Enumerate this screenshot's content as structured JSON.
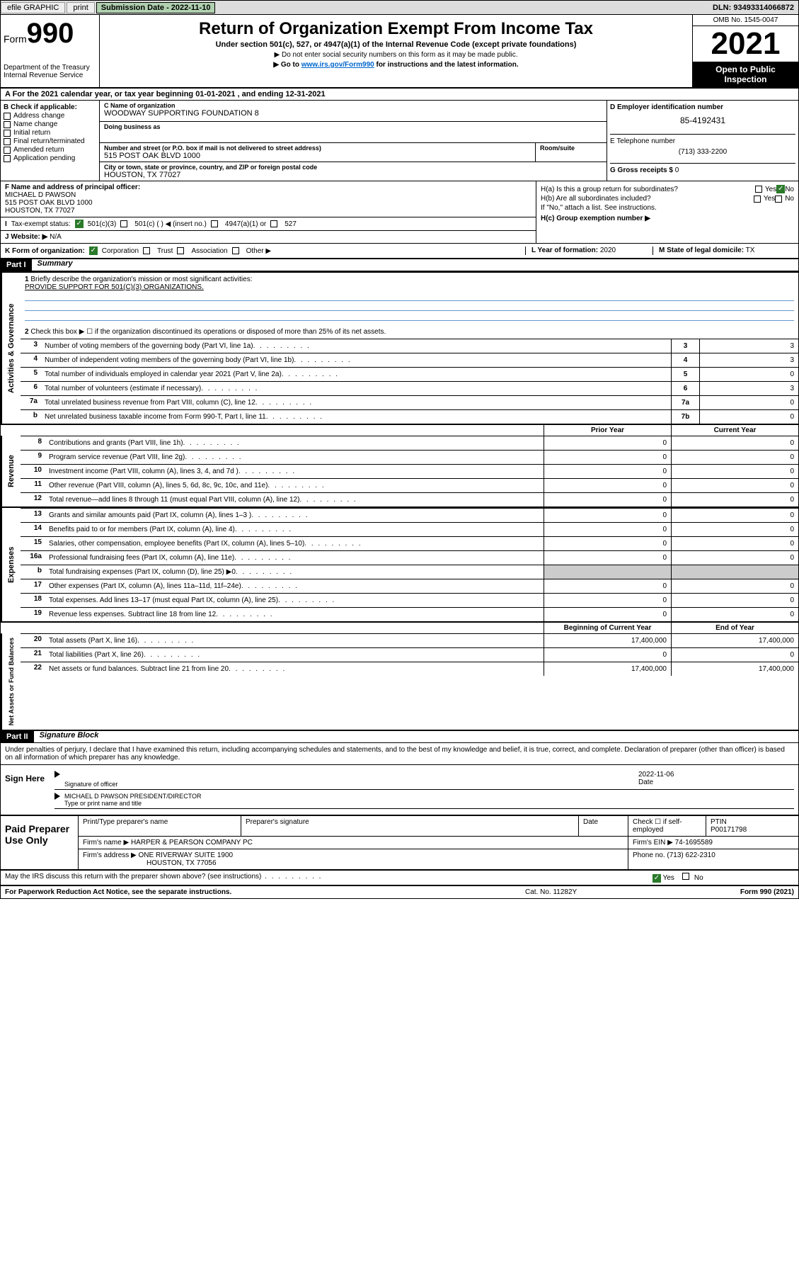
{
  "topbar": {
    "efile": "efile GRAPHIC",
    "print": "print",
    "submission_label": "Submission Date - 2022-11-10",
    "dln": "DLN: 93493314066872"
  },
  "header": {
    "form_label": "Form",
    "form_num": "990",
    "dept": "Department of the Treasury",
    "irs": "Internal Revenue Service",
    "title": "Return of Organization Exempt From Income Tax",
    "subtitle": "Under section 501(c), 527, or 4947(a)(1) of the Internal Revenue Code (except private foundations)",
    "note1": "▶ Do not enter social security numbers on this form as it may be made public.",
    "note2_pre": "▶ Go to ",
    "note2_link": "www.irs.gov/Form990",
    "note2_post": " for instructions and the latest information.",
    "omb": "OMB No. 1545-0047",
    "year": "2021",
    "inspect1": "Open to Public",
    "inspect2": "Inspection"
  },
  "row_a": "A For the 2021 calendar year, or tax year beginning 01-01-2021   , and ending 12-31-2021",
  "box_b": {
    "label": "B Check if applicable:",
    "items": [
      "Address change",
      "Name change",
      "Initial return",
      "Final return/terminated",
      "Amended return",
      "Application pending"
    ]
  },
  "box_c": {
    "name_label": "C Name of organization",
    "name": "WOODWAY SUPPORTING FOUNDATION 8",
    "dba_label": "Doing business as",
    "dba": "",
    "street_label": "Number and street (or P.O. box if mail is not delivered to street address)",
    "room_label": "Room/suite",
    "street": "515 POST OAK BLVD 1000",
    "city_label": "City or town, state or province, country, and ZIP or foreign postal code",
    "city": "HOUSTON, TX  77027"
  },
  "box_d": {
    "ein_label": "D Employer identification number",
    "ein": "85-4192431",
    "phone_label": "E Telephone number",
    "phone": "(713) 333-2200",
    "gross_label": "G Gross receipts $",
    "gross": "0"
  },
  "box_f": {
    "label": "F Name and address of principal officer:",
    "name": "MICHAEL D PAWSON",
    "street": "515 POST OAK BLVD 1000",
    "city": "HOUSTON, TX  77027"
  },
  "box_h": {
    "ha": "H(a)  Is this a group return for subordinates?",
    "hb": "H(b)  Are all subordinates included?",
    "hb_note": "If \"No,\" attach a list. See instructions.",
    "hc": "H(c)  Group exemption number ▶",
    "yes": "Yes",
    "no": "No"
  },
  "box_i": {
    "label": "Tax-exempt status:",
    "c3": "501(c)(3)",
    "c": "501(c) (  ) ◀ (insert no.)",
    "a1": "4947(a)(1) or",
    "s527": "527"
  },
  "box_j": {
    "label": "Website: ▶",
    "value": "N/A"
  },
  "box_k": {
    "label": "K Form of organization:",
    "corp": "Corporation",
    "trust": "Trust",
    "assoc": "Association",
    "other": "Other ▶"
  },
  "box_l": {
    "label": "L Year of formation:",
    "value": "2020"
  },
  "box_m": {
    "label": "M State of legal domicile:",
    "value": "TX"
  },
  "part1": {
    "header": "Part I",
    "title": "Summary"
  },
  "summary": {
    "q1_label": "1",
    "q1": "Briefly describe the organization's mission or most significant activities:",
    "q1_val": "PROVIDE SUPPORT FOR 501(C)(3) ORGANIZATIONS.",
    "q2_label": "2",
    "q2": "Check this box ▶ ☐  if the organization discontinued its operations or disposed of more than 25% of its net assets.",
    "rows": [
      {
        "n": "3",
        "t": "Number of voting members of the governing body (Part VI, line 1a)",
        "box": "3",
        "v": "3"
      },
      {
        "n": "4",
        "t": "Number of independent voting members of the governing body (Part VI, line 1b)",
        "box": "4",
        "v": "3"
      },
      {
        "n": "5",
        "t": "Total number of individuals employed in calendar year 2021 (Part V, line 2a)",
        "box": "5",
        "v": "0"
      },
      {
        "n": "6",
        "t": "Total number of volunteers (estimate if necessary)",
        "box": "6",
        "v": "3"
      },
      {
        "n": "7a",
        "t": "Total unrelated business revenue from Part VIII, column (C), line 12",
        "box": "7a",
        "v": "0"
      },
      {
        "n": "b",
        "t": "Net unrelated business taxable income from Form 990-T, Part I, line 11",
        "box": "7b",
        "v": "0"
      }
    ]
  },
  "cols": {
    "prior": "Prior Year",
    "current": "Current Year",
    "begin": "Beginning of Current Year",
    "end": "End of Year"
  },
  "revenue": [
    {
      "n": "8",
      "t": "Contributions and grants (Part VIII, line 1h)",
      "p": "0",
      "c": "0"
    },
    {
      "n": "9",
      "t": "Program service revenue (Part VIII, line 2g)",
      "p": "0",
      "c": "0"
    },
    {
      "n": "10",
      "t": "Investment income (Part VIII, column (A), lines 3, 4, and 7d )",
      "p": "0",
      "c": "0"
    },
    {
      "n": "11",
      "t": "Other revenue (Part VIII, column (A), lines 5, 6d, 8c, 9c, 10c, and 11e)",
      "p": "0",
      "c": "0"
    },
    {
      "n": "12",
      "t": "Total revenue—add lines 8 through 11 (must equal Part VIII, column (A), line 12)",
      "p": "0",
      "c": "0"
    }
  ],
  "expenses": [
    {
      "n": "13",
      "t": "Grants and similar amounts paid (Part IX, column (A), lines 1–3 )",
      "p": "0",
      "c": "0"
    },
    {
      "n": "14",
      "t": "Benefits paid to or for members (Part IX, column (A), line 4)",
      "p": "0",
      "c": "0"
    },
    {
      "n": "15",
      "t": "Salaries, other compensation, employee benefits (Part IX, column (A), lines 5–10)",
      "p": "0",
      "c": "0"
    },
    {
      "n": "16a",
      "t": "Professional fundraising fees (Part IX, column (A), line 11e)",
      "p": "0",
      "c": "0"
    },
    {
      "n": "b",
      "t": "Total fundraising expenses (Part IX, column (D), line 25) ▶0",
      "p": "",
      "c": "",
      "shade": true
    },
    {
      "n": "17",
      "t": "Other expenses (Part IX, column (A), lines 11a–11d, 11f–24e)",
      "p": "0",
      "c": "0"
    },
    {
      "n": "18",
      "t": "Total expenses. Add lines 13–17 (must equal Part IX, column (A), line 25)",
      "p": "0",
      "c": "0"
    },
    {
      "n": "19",
      "t": "Revenue less expenses. Subtract line 18 from line 12",
      "p": "0",
      "c": "0"
    }
  ],
  "netassets": [
    {
      "n": "20",
      "t": "Total assets (Part X, line 16)",
      "p": "17,400,000",
      "c": "17,400,000"
    },
    {
      "n": "21",
      "t": "Total liabilities (Part X, line 26)",
      "p": "0",
      "c": "0"
    },
    {
      "n": "22",
      "t": "Net assets or fund balances. Subtract line 21 from line 20",
      "p": "17,400,000",
      "c": "17,400,000"
    }
  ],
  "vtabs": {
    "gov": "Activities & Governance",
    "rev": "Revenue",
    "exp": "Expenses",
    "net": "Net Assets or Fund Balances"
  },
  "part2": {
    "header": "Part II",
    "title": "Signature Block"
  },
  "sig": {
    "intro": "Under penalties of perjury, I declare that I have examined this return, including accompanying schedules and statements, and to the best of my knowledge and belief, it is true, correct, and complete. Declaration of preparer (other than officer) is based on all information of which preparer has any knowledge.",
    "sign_here": "Sign Here",
    "sig_officer": "Signature of officer",
    "date_label": "Date",
    "date": "2022-11-06",
    "name": "MICHAEL D PAWSON PRESIDENT/DIRECTOR",
    "name_label": "Type or print name and title"
  },
  "prep": {
    "title": "Paid Preparer Use Only",
    "h_name": "Print/Type preparer's name",
    "h_sig": "Preparer's signature",
    "h_date": "Date",
    "h_check": "Check ☐ if self-employed",
    "h_ptin": "PTIN",
    "ptin": "P00171798",
    "firm_name_label": "Firm's name    ▶",
    "firm_name": "HARPER & PEARSON COMPANY PC",
    "firm_ein_label": "Firm's EIN ▶",
    "firm_ein": "74-1695589",
    "firm_addr_label": "Firm's address ▶",
    "firm_addr1": "ONE RIVERWAY SUITE 1900",
    "firm_addr2": "HOUSTON, TX  77056",
    "phone_label": "Phone no.",
    "phone": "(713) 622-2310"
  },
  "discuss": {
    "q": "May the IRS discuss this return with the preparer shown above? (see instructions)",
    "yes": "Yes",
    "no": "No"
  },
  "footer": {
    "left": "For Paperwork Reduction Act Notice, see the separate instructions.",
    "mid": "Cat. No. 11282Y",
    "right": "Form 990 (2021)"
  }
}
